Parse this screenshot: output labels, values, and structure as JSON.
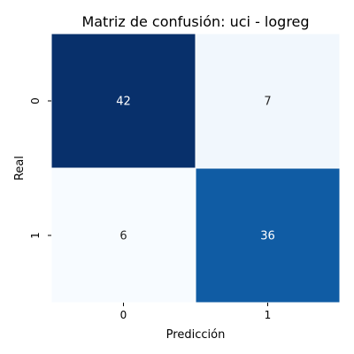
{
  "chart_data": {
    "type": "heatmap",
    "title": "Matriz de confusión: uci - logreg",
    "xlabel": "Predicción",
    "ylabel": "Real",
    "x_categories": [
      "0",
      "1"
    ],
    "y_categories": [
      "0",
      "1"
    ],
    "values": [
      [
        42,
        7
      ],
      [
        6,
        36
      ]
    ],
    "colormap": "Blues",
    "vmin": 6,
    "vmax": 42,
    "colorbar": false
  }
}
